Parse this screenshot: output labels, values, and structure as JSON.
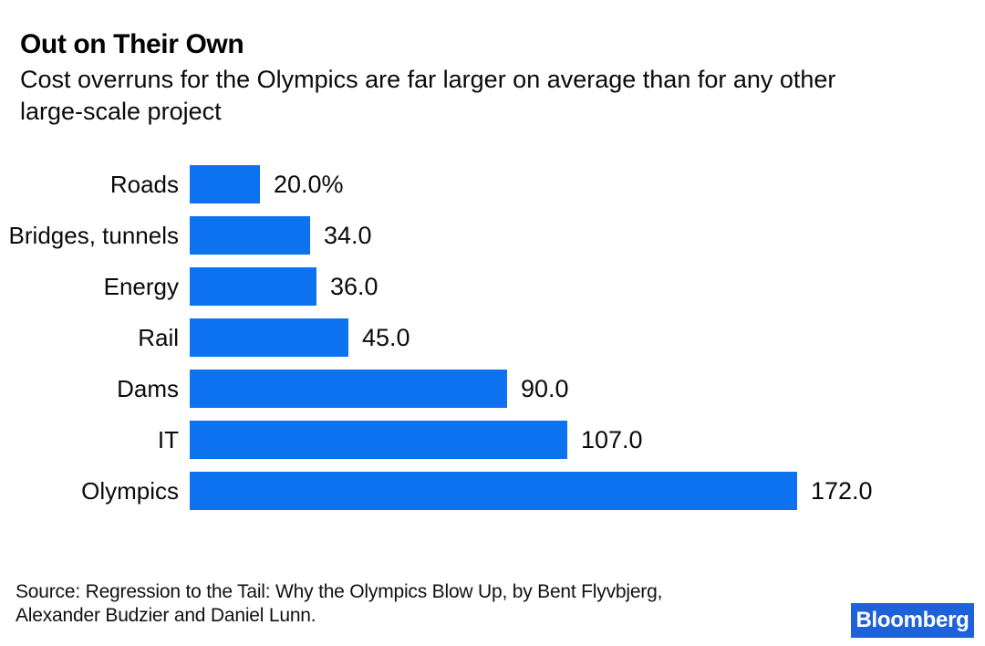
{
  "header": {
    "title": "Out on Their Own",
    "subtitle": "Cost overruns for the Olympics are far larger on average than for any other\nlarge-scale project"
  },
  "chart_data": {
    "type": "bar",
    "orientation": "horizontal",
    "title": "Out on Their Own",
    "subtitle": "Cost overruns for the Olympics are far larger on average than for any other large-scale project",
    "categories": [
      "Roads",
      "Bridges, tunnels",
      "Energy",
      "Rail",
      "Dams",
      "IT",
      "Olympics"
    ],
    "values": [
      20.0,
      34.0,
      36.0,
      45.0,
      90.0,
      107.0,
      172.0
    ],
    "value_labels": [
      "20.0%",
      "34.0",
      "36.0",
      "45.0",
      "90.0",
      "107.0",
      "172.0"
    ],
    "unit": "%",
    "xlabel": "",
    "ylabel": "",
    "xlim": [
      0,
      180
    ],
    "grid": false,
    "axes_visible": false,
    "legend": "none",
    "bar_color": "#0c72f0"
  },
  "footer": {
    "source": "Source: Regression to the Tail: Why the Olympics Blow Up, by Bent Flyvbjerg,\nAlexander Budzier and Daniel Lunn.",
    "brand": {
      "label": "Bloomberg",
      "bg_color": "#1e62d9",
      "text_color": "#ffffff"
    }
  }
}
